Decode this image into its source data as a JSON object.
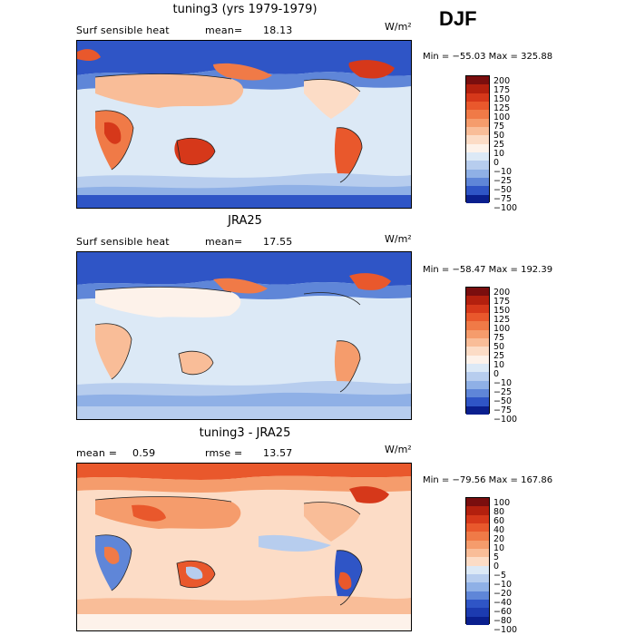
{
  "season": "DJF",
  "panels": [
    {
      "title": "tuning3 (yrs 1979-1979)",
      "left_label": "Surf sensible heat",
      "right_label": "mean=",
      "right_value": "18.13",
      "unit": "W/m²",
      "minmax": "Min = −55.03  Max = 325.88",
      "colorbar_labels": [
        "200",
        "175",
        "150",
        "125",
        "100",
        "75",
        "50",
        "25",
        "10",
        "0",
        "−10",
        "−25",
        "−50",
        "−75",
        "−100"
      ]
    },
    {
      "title": "JRA25",
      "left_label": "Surf sensible heat",
      "right_label": "mean=",
      "right_value": "17.55",
      "unit": "W/m²",
      "minmax": "Min = −58.47  Max = 192.39",
      "colorbar_labels": [
        "200",
        "175",
        "150",
        "125",
        "100",
        "75",
        "50",
        "25",
        "10",
        "0",
        "−10",
        "−25",
        "−50",
        "−75",
        "−100"
      ]
    },
    {
      "title": "tuning3 - JRA25",
      "left_label": "mean =",
      "left_value": "0.59",
      "right_label": "rmse =",
      "right_value": "13.57",
      "unit": "W/m²",
      "minmax": "Min = −79.56  Max = 167.86",
      "colorbar_labels": [
        "100",
        "80",
        "60",
        "40",
        "20",
        "10",
        "5",
        "0",
        "−5",
        "−10",
        "−20",
        "−40",
        "−60",
        "−80",
        "−100"
      ]
    }
  ],
  "colors": {
    "scale": [
      "#7a0e0e",
      "#b3200e",
      "#d6381a",
      "#e9582c",
      "#f07a47",
      "#f59c6c",
      "#f9bd98",
      "#fcdcc6",
      "#fdf2ea",
      "#dce9f6",
      "#b7cdee",
      "#8fb0e6",
      "#5f86d8",
      "#2f55c6",
      "#0a1f8e"
    ]
  }
}
